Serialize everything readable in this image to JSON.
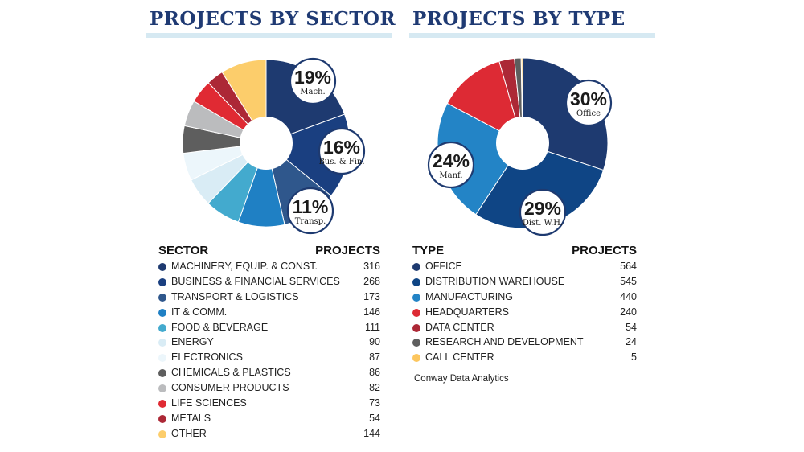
{
  "chart_data": [
    {
      "type": "pie",
      "title": "PROJECTS BY SECTOR",
      "legend_header": {
        "category": "SECTOR",
        "value": "PROJECTS"
      },
      "categories": [
        "MACHINERY, EQUIP. & CONST.",
        "BUSINESS & FINANCIAL SERVICES",
        "TRANSPORT & LOGISTICS",
        "IT & COMM.",
        "FOOD & BEVERAGE",
        "ENERGY",
        "ELECTRONICS",
        "CHEMICALS & PLASTICS",
        "CONSUMER PRODUCTS",
        "LIFE SCIENCES",
        "METALS",
        "OTHER"
      ],
      "values": [
        316,
        268,
        173,
        146,
        111,
        90,
        87,
        86,
        82,
        73,
        54,
        144
      ],
      "colors": [
        "#1e3a70",
        "#1a3f80",
        "#2f578c",
        "#1f80c4",
        "#43aace",
        "#d9ecf5",
        "#ecf6fb",
        "#5e5e5e",
        "#bbbcbe",
        "#e02a33",
        "#ac2836",
        "#fccd6b"
      ],
      "callouts": [
        {
          "index": 0,
          "pct": "19%",
          "label": "Mach."
        },
        {
          "index": 1,
          "pct": "16%",
          "label": "Bus. & Fin."
        },
        {
          "index": 2,
          "pct": "11%",
          "label": "Transp."
        }
      ]
    },
    {
      "type": "pie",
      "title": "PROJECTS BY TYPE",
      "legend_header": {
        "category": "TYPE",
        "value": "PROJECTS"
      },
      "categories": [
        "OFFICE",
        "DISTRIBUTION WAREHOUSE",
        "MANUFACTURING",
        "HEADQUARTERS",
        "DATA CENTER",
        "RESEARCH AND DEVELOPMENT",
        "CALL CENTER"
      ],
      "values": [
        564,
        545,
        440,
        240,
        54,
        24,
        5
      ],
      "colors": [
        "#1e3a70",
        "#0f4585",
        "#2384c6",
        "#dd2a34",
        "#ac2836",
        "#5e5e5e",
        "#fcc65e"
      ],
      "callouts": [
        {
          "index": 0,
          "pct": "30%",
          "label": "Office"
        },
        {
          "index": 1,
          "pct": "29%",
          "label": "Dist. W.H."
        },
        {
          "index": 2,
          "pct": "24%",
          "label": "Manf."
        }
      ]
    }
  ],
  "source": "Conway Data Analytics"
}
